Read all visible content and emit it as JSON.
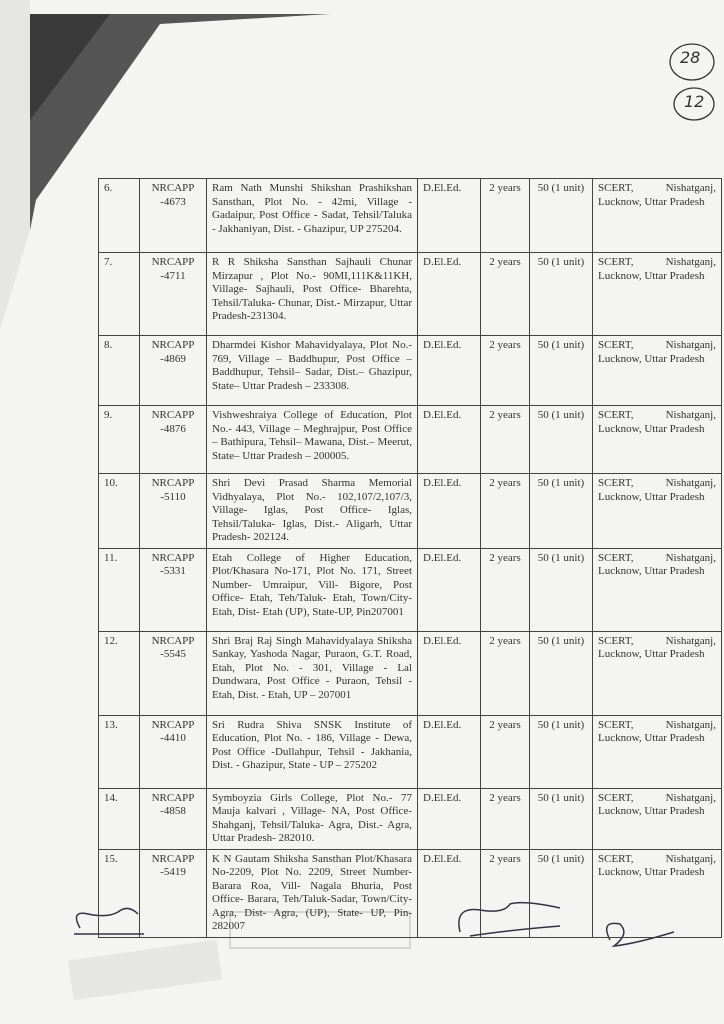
{
  "page_marks": [
    "28",
    "12"
  ],
  "table": {
    "rows": [
      [
        "6.",
        "NRCAPP -4673",
        "Ram Nath Munshi Shikshan Prashikshan Sansthan, Plot No. - 42mi, Village - Gadaipur, Post Office - Sadat, Tehsil/Taluka - Jakhaniyan, Dist. - Ghazipur, UP 275204.",
        "D.El.Ed.",
        "2 years",
        "50 (1 unit)",
        "SCERT, Nishatganj, Lucknow, Uttar Pradesh"
      ],
      [
        "7.",
        "NRCAPP -4711",
        "R R Shiksha Sansthan Sajhauli Chunar Mirzapur , Plot No.- 90MI,111K&11KH, Village- Sajhauli, Post Office- Bharehta, Tehsil/Taluka- Chunar, Dist.- Mirzapur, Uttar Pradesh-231304.",
        "D.El.Ed.",
        "2 years",
        "50 (1 unit)",
        "SCERT, Nishatganj, Lucknow, Uttar Pradesh"
      ],
      [
        "8.",
        "NRCAPP -4869",
        "Dharmdei Kishor Mahavidyalaya, Plot No.- 769, Village – Baddhupur, Post Office – Baddhupur, Tehsil– Sadar, Dist.– Ghazipur, State– Uttar Pradesh – 233308.",
        "D.El.Ed.",
        "2 years",
        "50 (1 unit)",
        "SCERT, Nishatganj, Lucknow, Uttar Pradesh"
      ],
      [
        "9.",
        "NRCAPP -4876",
        "Vishweshraiya College of Education, Plot No.- 443, Village – Meghrajpur, Post Office – Bathipura, Tehsil– Mawana, Dist.– Meerut, State– Uttar Pradesh – 200005.",
        "D.El.Ed.",
        "2 years",
        "50 (1 unit)",
        "SCERT, Nishatganj, Lucknow, Uttar Pradesh"
      ],
      [
        "10.",
        "NRCAPP -5110",
        "Shri Devi Prasad Sharma Memorial Vidhyalaya, Plot No.- 102,107/2,107/3, Village- Iglas, Post Office- Iglas, Tehsil/Taluka- Iglas, Dist.- Aligarh, Uttar Pradesh- 202124.",
        "D.El.Ed.",
        "2 years",
        "50 (1 unit)",
        "SCERT, Nishatganj, Lucknow, Uttar Pradesh"
      ],
      [
        "11.",
        "NRCAPP -5331",
        "Etah College of Higher Education, Plot/Khasara No-171, Plot No. 171, Street Number- Umraipur, Vill- Bigore, Post Office- Etah, Teh/Taluk- Etah, Town/City- Etah, Dist- Etah (UP), State-UP, Pin207001",
        "D.El.Ed.",
        "2 years",
        "50 (1 unit)",
        "SCERT, Nishatganj, Lucknow, Uttar Pradesh"
      ],
      [
        "12.",
        "NRCAPP -5545",
        "Shri Braj Raj Singh Mahavidyalaya Shiksha Sankay, Yashoda Nagar, Puraon, G.T. Road, Etah, Plot No. - 301, Village - Lal Dundwara, Post Office - Puraon, Tehsil - Etah, Dist. - Etah, UP – 207001",
        "D.El.Ed.",
        "2 years",
        "50 (1 unit)",
        "SCERT, Nishatganj, Lucknow, Uttar Pradesh"
      ],
      [
        "13.",
        "NRCAPP -4410",
        "Sri Rudra Shiva SNSK Institute of Education, Plot No. - 186, Village - Dewa, Post Office -Dullahpur, Tehsil - Jakhania, Dist. - Ghazipur, State - UP – 275202",
        "D.El.Ed.",
        "2 years",
        "50 (1 unit)",
        "SCERT, Nishatganj, Lucknow, Uttar Pradesh"
      ],
      [
        "14.",
        "NRCAPP -4858",
        "Symboyzia Girls College, Plot No.- 77 Mauja kalvari , Village- NA, Post Office- Shahganj, Tehsil/Taluka- Agra, Dist.- Agra, Uttar Pradesh- 282010.",
        "D.El.Ed.",
        "2 years",
        "50 (1 unit)",
        "SCERT, Nishatganj, Lucknow, Uttar Pradesh"
      ],
      [
        "15.",
        "NRCAPP -5419",
        "K N Gautam Shiksha Sansthan Plot/Khasara No-2209, Plot No. 2209, Street Number-Barara Roa, Vill- Nagala Bhuria, Post Office- Barara, Teh/Taluk-Sadar, Town/City- Agra, Dist- Agra, (UP), State- UP, Pin- 282007",
        "D.El.Ed.",
        "2 years",
        "50 (1 unit)",
        "SCERT, Nishatganj, Lucknow, Uttar Pradesh"
      ]
    ]
  }
}
